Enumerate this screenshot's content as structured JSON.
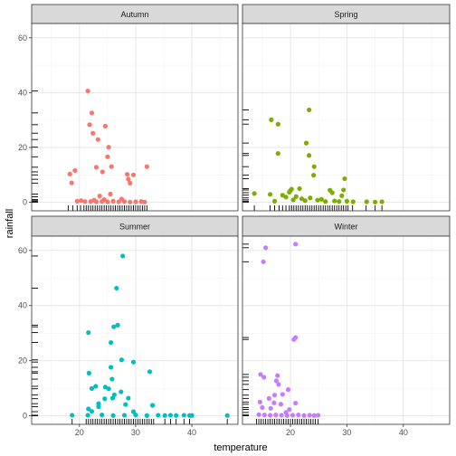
{
  "chart_data": {
    "type": "scatter",
    "xlabel": "temperature",
    "ylabel": "rainfall",
    "xlim": [
      11.5,
      48.2
    ],
    "ylim": [
      -3.1,
      65.2
    ],
    "x_ticks": [
      20,
      30,
      40
    ],
    "y_ticks": [
      0,
      20,
      40,
      60
    ],
    "grid": true,
    "legend": "none",
    "rug": "x-bottom, y-left",
    "panels": [
      {
        "name": "Autumn",
        "color": "#F8766D",
        "points": [
          [
            21.5,
            40.6
          ],
          [
            22.2,
            32.6
          ],
          [
            21.8,
            28.3
          ],
          [
            22.4,
            25.2
          ],
          [
            23.3,
            22.9
          ],
          [
            24.6,
            27.8
          ],
          [
            25.2,
            20.1
          ],
          [
            25.0,
            16.6
          ],
          [
            25.7,
            13.0
          ],
          [
            24.1,
            11.1
          ],
          [
            23.0,
            12.8
          ],
          [
            19.2,
            11.6
          ],
          [
            18.3,
            10.3
          ],
          [
            18.6,
            7.1
          ],
          [
            28.5,
            10.2
          ],
          [
            29.6,
            10.0
          ],
          [
            28.7,
            8.4
          ],
          [
            29.0,
            7.0
          ],
          [
            32.0,
            13.0
          ],
          [
            23.6,
            2.3
          ],
          [
            25.5,
            3.0
          ],
          [
            24.4,
            1.0
          ],
          [
            22.6,
            0.8
          ],
          [
            20.3,
            0.6
          ],
          [
            19.6,
            0.4
          ],
          [
            21.0,
            0.3
          ],
          [
            22.0,
            0.3
          ],
          [
            23.0,
            0.2
          ],
          [
            24.0,
            0.3
          ],
          [
            25.0,
            0.2
          ],
          [
            26.0,
            0.4
          ],
          [
            27.0,
            0.2
          ],
          [
            28.0,
            0.3
          ],
          [
            29.0,
            0.1
          ],
          [
            30.0,
            0.2
          ],
          [
            31.0,
            0.3
          ],
          [
            31.6,
            0.1
          ],
          [
            27.5,
            1.2
          ]
        ],
        "rug_x": [
          18.0,
          18.8,
          19.6,
          20.2,
          20.8,
          21.2,
          21.6,
          22.0,
          22.4,
          22.8,
          23.2,
          23.6,
          24.0,
          24.4,
          24.8,
          25.2,
          25.6,
          26.0,
          26.4,
          26.8,
          27.2,
          27.6,
          28.0,
          28.4,
          28.8,
          29.2,
          29.6,
          30.0,
          30.4,
          30.8,
          31.2,
          31.6,
          32.0
        ],
        "rug_y": [
          0,
          0.3,
          0.6,
          1.0,
          2.0,
          3.0,
          7.0,
          8.4,
          10.0,
          11.1,
          12.8,
          16.6,
          20.1,
          22.9,
          25.2,
          28.3,
          32.6,
          40.6
        ]
      },
      {
        "name": "Spring",
        "color": "#7CAE00",
        "points": [
          [
            23.3,
            33.7
          ],
          [
            16.6,
            30.1
          ],
          [
            17.8,
            28.5
          ],
          [
            22.8,
            21.6
          ],
          [
            17.8,
            17.8
          ],
          [
            23.3,
            17.1
          ],
          [
            24.2,
            13.0
          ],
          [
            24.1,
            9.9
          ],
          [
            29.6,
            8.6
          ],
          [
            29.4,
            4.5
          ],
          [
            20.0,
            4.3
          ],
          [
            20.2,
            4.8
          ],
          [
            21.6,
            5.0
          ],
          [
            27.0,
            4.4
          ],
          [
            27.4,
            3.5
          ],
          [
            13.6,
            3.2
          ],
          [
            16.4,
            2.9
          ],
          [
            18.6,
            2.6
          ],
          [
            19.2,
            1.9
          ],
          [
            19.8,
            3.7
          ],
          [
            21.0,
            2.1
          ],
          [
            20.5,
            0.9
          ],
          [
            22.0,
            1.3
          ],
          [
            22.6,
            0.6
          ],
          [
            23.5,
            1.6
          ],
          [
            24.8,
            0.8
          ],
          [
            25.5,
            1.1
          ],
          [
            26.2,
            0.3
          ],
          [
            27.8,
            0.5
          ],
          [
            28.6,
            0.3
          ],
          [
            29.1,
            2.4
          ],
          [
            30.0,
            0.4
          ],
          [
            31.1,
            0.2
          ],
          [
            33.5,
            0.2
          ],
          [
            35.0,
            0.1
          ],
          [
            36.2,
            0.2
          ],
          [
            17.2,
            0.4
          ]
        ],
        "rug_x": [
          13.6,
          16.4,
          17.2,
          18.0,
          18.6,
          19.2,
          19.8,
          20.2,
          20.6,
          21.0,
          21.4,
          21.8,
          22.2,
          22.6,
          23.0,
          23.4,
          23.8,
          24.2,
          24.6,
          25.0,
          25.4,
          25.8,
          26.2,
          26.6,
          27.0,
          27.4,
          27.8,
          28.2,
          28.6,
          29.0,
          29.4,
          29.8,
          30.2,
          31.0,
          33.4,
          35.0,
          36.2
        ],
        "rug_y": [
          0,
          0.4,
          0.9,
          1.6,
          2.6,
          3.5,
          4.5,
          5.0,
          8.6,
          9.9,
          13.0,
          17.1,
          17.8,
          21.6,
          28.5,
          30.1,
          33.7
        ]
      },
      {
        "name": "Summer",
        "color": "#00BFC4",
        "points": [
          [
            27.7,
            58.0
          ],
          [
            26.6,
            46.3
          ],
          [
            26.8,
            32.9
          ],
          [
            26.1,
            32.3
          ],
          [
            21.6,
            30.2
          ],
          [
            25.6,
            26.6
          ],
          [
            27.5,
            20.3
          ],
          [
            29.6,
            19.5
          ],
          [
            25.6,
            17.6
          ],
          [
            32.5,
            16.0
          ],
          [
            21.7,
            15.5
          ],
          [
            25.8,
            13.3
          ],
          [
            22.9,
            10.7
          ],
          [
            24.6,
            10.4
          ],
          [
            27.4,
            8.7
          ],
          [
            22.2,
            9.9
          ],
          [
            25.2,
            9.8
          ],
          [
            26.2,
            7.6
          ],
          [
            28.7,
            6.4
          ],
          [
            24.5,
            6.2
          ],
          [
            25.9,
            6.4
          ],
          [
            28.2,
            4.1
          ],
          [
            21.6,
            2.5
          ],
          [
            23.4,
            4.4
          ],
          [
            23.4,
            3.3
          ],
          [
            33.0,
            3.8
          ],
          [
            29.6,
            1.5
          ],
          [
            22.2,
            1.6
          ],
          [
            18.7,
            0.2
          ],
          [
            21.5,
            0.2
          ],
          [
            24.0,
            0.3
          ],
          [
            26.0,
            0.1
          ],
          [
            28.0,
            0.2
          ],
          [
            30.0,
            0.3
          ],
          [
            32.0,
            0.1
          ],
          [
            34.0,
            0.2
          ],
          [
            35.2,
            0.1
          ],
          [
            36.2,
            0.2
          ],
          [
            37.2,
            0.1
          ],
          [
            38.6,
            0.2
          ],
          [
            39.6,
            0.1
          ],
          [
            40.0,
            0.1
          ],
          [
            46.3,
            0.1
          ]
        ],
        "rug_x": [
          18.7,
          21.2,
          21.6,
          22.0,
          22.4,
          22.8,
          23.2,
          23.6,
          24.0,
          24.4,
          24.8,
          25.2,
          25.6,
          26.0,
          26.4,
          26.8,
          27.2,
          27.6,
          28.0,
          28.4,
          28.8,
          29.2,
          29.6,
          30.0,
          30.4,
          30.8,
          31.2,
          31.6,
          32.0,
          32.4,
          32.8,
          33.2,
          35.2,
          36.2,
          37.2,
          38.6,
          39.6,
          46.3
        ],
        "rug_y": [
          0,
          0.2,
          1.5,
          3.3,
          4.4,
          6.2,
          7.6,
          9.8,
          10.7,
          13.3,
          15.5,
          16.0,
          17.6,
          19.5,
          20.3,
          26.6,
          30.2,
          32.3,
          32.9,
          46.3,
          58.0
        ]
      },
      {
        "name": "Winter",
        "color": "#C77CFF",
        "points": [
          [
            20.9,
            62.3
          ],
          [
            15.6,
            61.0
          ],
          [
            15.2,
            55.9
          ],
          [
            20.9,
            28.4
          ],
          [
            20.6,
            27.7
          ],
          [
            14.7,
            15.0
          ],
          [
            17.7,
            14.6
          ],
          [
            15.3,
            14.0
          ],
          [
            17.5,
            12.7
          ],
          [
            17.9,
            11.4
          ],
          [
            19.6,
            9.5
          ],
          [
            17.2,
            7.5
          ],
          [
            18.6,
            7.8
          ],
          [
            16.2,
            6.3
          ],
          [
            14.6,
            5.0
          ],
          [
            17.1,
            4.7
          ],
          [
            18.3,
            4.2
          ],
          [
            20.9,
            4.6
          ],
          [
            15.0,
            3.0
          ],
          [
            16.5,
            2.7
          ],
          [
            19.8,
            2.3
          ],
          [
            19.2,
            1.2
          ],
          [
            14.4,
            0.4
          ],
          [
            15.4,
            0.3
          ],
          [
            16.4,
            0.2
          ],
          [
            17.4,
            0.3
          ],
          [
            18.4,
            0.2
          ],
          [
            19.4,
            0.1
          ],
          [
            20.4,
            0.2
          ],
          [
            21.4,
            0.3
          ],
          [
            22.4,
            0.1
          ],
          [
            23.4,
            0.2
          ],
          [
            24.2,
            0.1
          ],
          [
            24.9,
            0.2
          ]
        ],
        "rug_x": [
          14.0,
          14.4,
          14.8,
          15.2,
          15.6,
          16.0,
          16.4,
          16.8,
          17.2,
          17.6,
          18.0,
          18.4,
          18.8,
          19.2,
          19.6,
          20.0,
          20.4,
          20.8,
          21.2,
          21.6,
          22.0,
          22.4,
          22.8,
          23.2,
          23.6,
          24.0,
          24.4,
          24.9
        ],
        "rug_y": [
          0,
          0.3,
          1.2,
          2.3,
          3.0,
          4.2,
          5.0,
          6.3,
          7.5,
          9.5,
          11.4,
          12.7,
          14.0,
          15.0,
          27.7,
          28.4,
          55.9,
          61.0,
          62.3
        ]
      }
    ]
  }
}
